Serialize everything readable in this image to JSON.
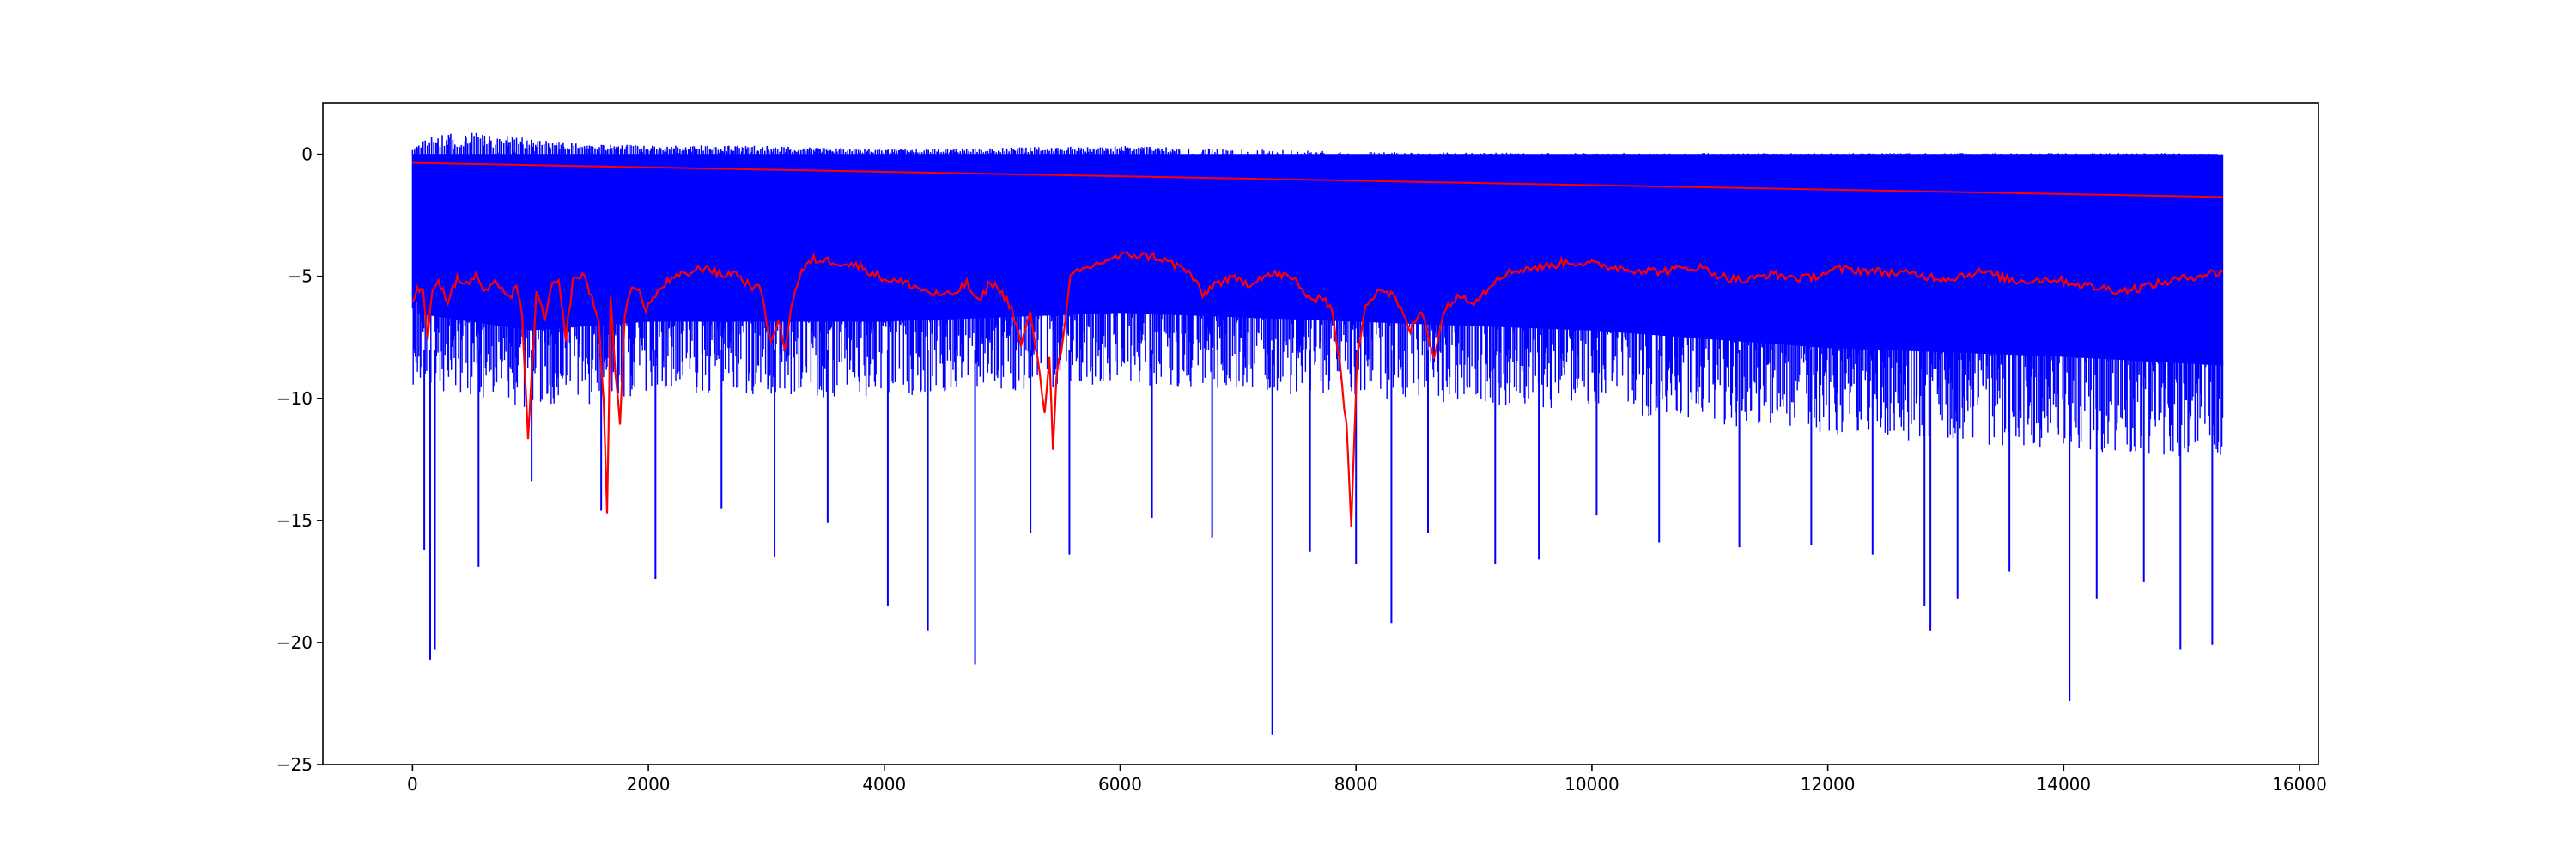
{
  "chart_data": {
    "type": "line",
    "title": "",
    "xlabel": "",
    "ylabel": "",
    "xlim": [
      -760,
      16160
    ],
    "ylim": [
      -25,
      2.1
    ],
    "grid": false,
    "legend": "none",
    "x_ticks": [
      {
        "value": 0,
        "label": "0"
      },
      {
        "value": 2000,
        "label": "2000"
      },
      {
        "value": 4000,
        "label": "4000"
      },
      {
        "value": 6000,
        "label": "6000"
      },
      {
        "value": 8000,
        "label": "8000"
      },
      {
        "value": 10000,
        "label": "10000"
      },
      {
        "value": 12000,
        "label": "12000"
      },
      {
        "value": 14000,
        "label": "14000"
      },
      {
        "value": 16000,
        "label": "16000"
      }
    ],
    "y_ticks": [
      {
        "value": 0,
        "label": "0"
      },
      {
        "value": -5,
        "label": "−5"
      },
      {
        "value": -10,
        "label": "−10"
      },
      {
        "value": -15,
        "label": "−15"
      },
      {
        "value": -20,
        "label": "−20"
      },
      {
        "value": -25,
        "label": "−25"
      }
    ],
    "series": [
      {
        "color": "#0000ff",
        "style": "dense-oscillating",
        "x_range": [
          0,
          15350
        ],
        "upper_bound": [
          [
            0,
            0.2
          ],
          [
            150,
            0.8
          ],
          [
            520,
            0.9
          ],
          [
            1500,
            0.4
          ],
          [
            3000,
            0.35
          ],
          [
            4000,
            0.2
          ],
          [
            6000,
            0.35
          ],
          [
            8000,
            0.1
          ],
          [
            10000,
            0.05
          ],
          [
            15350,
            0.05
          ]
        ],
        "typical_low": [
          [
            0,
            -9
          ],
          [
            1000,
            -10
          ],
          [
            2000,
            -9.5
          ],
          [
            4000,
            -9.5
          ],
          [
            6000,
            -9
          ],
          [
            8000,
            -9.5
          ],
          [
            10000,
            -10
          ],
          [
            12000,
            -11
          ],
          [
            14000,
            -11.5
          ],
          [
            15350,
            -12
          ]
        ],
        "notable_minima": [
          {
            "x": 100,
            "y": -16.2
          },
          {
            "x": 150,
            "y": -20.7
          },
          {
            "x": 190,
            "y": -20.3
          },
          {
            "x": 560,
            "y": -16.9
          },
          {
            "x": 1010,
            "y": -13.4
          },
          {
            "x": 1600,
            "y": -14.6
          },
          {
            "x": 2060,
            "y": -17.4
          },
          {
            "x": 2620,
            "y": -14.5
          },
          {
            "x": 3070,
            "y": -16.5
          },
          {
            "x": 3520,
            "y": -15.1
          },
          {
            "x": 4030,
            "y": -18.5
          },
          {
            "x": 4370,
            "y": -19.5
          },
          {
            "x": 4770,
            "y": -20.9
          },
          {
            "x": 5240,
            "y": -15.5
          },
          {
            "x": 5570,
            "y": -16.4
          },
          {
            "x": 6270,
            "y": -14.9
          },
          {
            "x": 6780,
            "y": -15.7
          },
          {
            "x": 7290,
            "y": -23.8
          },
          {
            "x": 7610,
            "y": -16.3
          },
          {
            "x": 8000,
            "y": -16.8
          },
          {
            "x": 8300,
            "y": -19.2
          },
          {
            "x": 8610,
            "y": -15.5
          },
          {
            "x": 9180,
            "y": -16.8
          },
          {
            "x": 9550,
            "y": -16.6
          },
          {
            "x": 10040,
            "y": -14.8
          },
          {
            "x": 10570,
            "y": -15.9
          },
          {
            "x": 11250,
            "y": -16.1
          },
          {
            "x": 11860,
            "y": -16.0
          },
          {
            "x": 12380,
            "y": -16.4
          },
          {
            "x": 12820,
            "y": -18.5
          },
          {
            "x": 12870,
            "y": -19.5
          },
          {
            "x": 13100,
            "y": -18.2
          },
          {
            "x": 13540,
            "y": -17.1
          },
          {
            "x": 14050,
            "y": -22.4
          },
          {
            "x": 14280,
            "y": -18.2
          },
          {
            "x": 14680,
            "y": -17.5
          },
          {
            "x": 14990,
            "y": -20.3
          },
          {
            "x": 15260,
            "y": -20.1
          }
        ]
      },
      {
        "color": "#ff0000",
        "style": "smooth-average",
        "points": [
          [
            0,
            -6.0
          ],
          [
            40,
            -5.5
          ],
          [
            90,
            -5.7
          ],
          [
            130,
            -7.5
          ],
          [
            170,
            -5.4
          ],
          [
            220,
            -5.2
          ],
          [
            300,
            -6.0
          ],
          [
            380,
            -5.1
          ],
          [
            460,
            -5.3
          ],
          [
            540,
            -5.0
          ],
          [
            620,
            -5.7
          ],
          [
            720,
            -5.2
          ],
          [
            820,
            -5.9
          ],
          [
            880,
            -5.5
          ],
          [
            930,
            -6.5
          ],
          [
            980,
            -11.8
          ],
          [
            1010,
            -9.0
          ],
          [
            1050,
            -5.6
          ],
          [
            1120,
            -6.8
          ],
          [
            1180,
            -5.4
          ],
          [
            1240,
            -5.3
          ],
          [
            1300,
            -7.5
          ],
          [
            1360,
            -5.2
          ],
          [
            1440,
            -4.9
          ],
          [
            1520,
            -5.8
          ],
          [
            1580,
            -7.0
          ],
          [
            1620,
            -10.0
          ],
          [
            1650,
            -14.7
          ],
          [
            1680,
            -6.0
          ],
          [
            1720,
            -9.0
          ],
          [
            1760,
            -11.0
          ],
          [
            1800,
            -6.5
          ],
          [
            1840,
            -5.6
          ],
          [
            1900,
            -5.5
          ],
          [
            1980,
            -6.3
          ],
          [
            2060,
            -5.8
          ],
          [
            2140,
            -5.3
          ],
          [
            2260,
            -5.0
          ],
          [
            2380,
            -4.8
          ],
          [
            2500,
            -4.6
          ],
          [
            2620,
            -5.0
          ],
          [
            2720,
            -4.8
          ],
          [
            2840,
            -5.3
          ],
          [
            2960,
            -5.6
          ],
          [
            3040,
            -7.8
          ],
          [
            3100,
            -6.8
          ],
          [
            3160,
            -7.9
          ],
          [
            3230,
            -5.8
          ],
          [
            3300,
            -4.8
          ],
          [
            3400,
            -4.3
          ],
          [
            3600,
            -4.4
          ],
          [
            3800,
            -4.6
          ],
          [
            4000,
            -5.1
          ],
          [
            4200,
            -5.3
          ],
          [
            4400,
            -5.7
          ],
          [
            4560,
            -5.8
          ],
          [
            4700,
            -5.3
          ],
          [
            4800,
            -6.1
          ],
          [
            4900,
            -5.2
          ],
          [
            5000,
            -5.7
          ],
          [
            5080,
            -6.3
          ],
          [
            5160,
            -7.8
          ],
          [
            5240,
            -6.5
          ],
          [
            5300,
            -8.5
          ],
          [
            5360,
            -10.5
          ],
          [
            5400,
            -8.3
          ],
          [
            5430,
            -12.0
          ],
          [
            5460,
            -9.0
          ],
          [
            5520,
            -7.5
          ],
          [
            5580,
            -5.0
          ],
          [
            5700,
            -4.7
          ],
          [
            5900,
            -4.3
          ],
          [
            6100,
            -4.1
          ],
          [
            6300,
            -4.2
          ],
          [
            6500,
            -4.6
          ],
          [
            6600,
            -4.9
          ],
          [
            6700,
            -5.8
          ],
          [
            6800,
            -5.3
          ],
          [
            6950,
            -5.1
          ],
          [
            7100,
            -5.3
          ],
          [
            7200,
            -5.0
          ],
          [
            7350,
            -4.9
          ],
          [
            7500,
            -5.2
          ],
          [
            7620,
            -6.1
          ],
          [
            7700,
            -5.7
          ],
          [
            7800,
            -6.4
          ],
          [
            7860,
            -8.5
          ],
          [
            7920,
            -11.2
          ],
          [
            7960,
            -15.2
          ],
          [
            8010,
            -8.3
          ],
          [
            8080,
            -6.1
          ],
          [
            8200,
            -5.5
          ],
          [
            8320,
            -5.8
          ],
          [
            8460,
            -7.2
          ],
          [
            8560,
            -6.4
          ],
          [
            8660,
            -8.3
          ],
          [
            8760,
            -6.2
          ],
          [
            8900,
            -5.8
          ],
          [
            9000,
            -6.0
          ],
          [
            9100,
            -5.6
          ],
          [
            9200,
            -5.0
          ],
          [
            9400,
            -4.7
          ],
          [
            9600,
            -4.6
          ],
          [
            9800,
            -4.4
          ],
          [
            10000,
            -4.5
          ],
          [
            10300,
            -4.7
          ],
          [
            10600,
            -4.8
          ],
          [
            10900,
            -4.6
          ],
          [
            11100,
            -5.0
          ],
          [
            11300,
            -5.2
          ],
          [
            11500,
            -4.9
          ],
          [
            11800,
            -5.1
          ],
          [
            12100,
            -4.7
          ],
          [
            12400,
            -4.8
          ],
          [
            12700,
            -4.9
          ],
          [
            13000,
            -5.1
          ],
          [
            13300,
            -4.8
          ],
          [
            13600,
            -5.2
          ],
          [
            13900,
            -5.1
          ],
          [
            14200,
            -5.4
          ],
          [
            14500,
            -5.6
          ],
          [
            14800,
            -5.3
          ],
          [
            15100,
            -5.0
          ],
          [
            15350,
            -4.8
          ]
        ]
      },
      {
        "color": "#ff0000",
        "style": "trend-line",
        "points": [
          [
            0,
            -0.35
          ],
          [
            15350,
            -1.75
          ]
        ]
      }
    ]
  }
}
